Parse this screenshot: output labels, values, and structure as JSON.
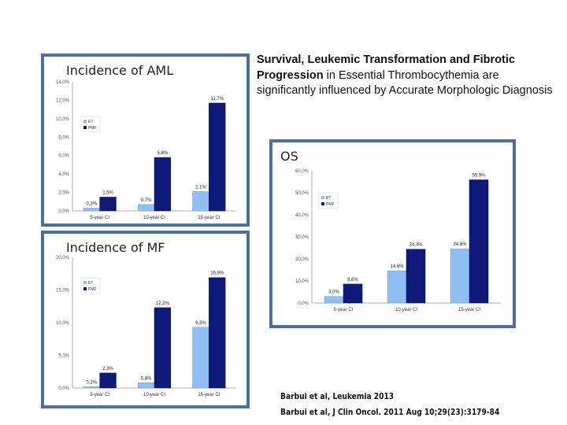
{
  "headline": {
    "bold": "Survival, Leukemic Transformation and Fibrotic Progression",
    "rest": " in Essential Thrombocythemia   are significantly influenced by Accurate Morphologic Diagnosis"
  },
  "citations": [
    "Barbui et al, Leukemia 2013",
    "Barbui et al, J Clin Oncol. 2011 Aug 10;29(23):3179-84"
  ],
  "colors": {
    "et": "#8fbff2",
    "pmf": "#0d1a7a",
    "frame": "#4a6fa5"
  },
  "chart_data": [
    {
      "id": "aml",
      "type": "bar",
      "title": "Incidence of AML",
      "categories": [
        "5-year CI",
        "10-year CI",
        "15-year CI"
      ],
      "ylim": [
        0,
        14
      ],
      "yticks": [
        0,
        2,
        4,
        6,
        8,
        10,
        12,
        14
      ],
      "ytick_labels": [
        "0,0%",
        "2,0%",
        "4,0%",
        "6,0%",
        "8,0%",
        "10,0%",
        "12,0%",
        "14,0%"
      ],
      "legend": [
        "ET",
        "PMF"
      ],
      "legend_position": "left",
      "series": [
        {
          "name": "ET",
          "values": [
            0.3,
            0.7,
            2.1
          ],
          "labels": [
            "0,3%",
            "0,7%",
            "2,1%"
          ]
        },
        {
          "name": "PMF",
          "values": [
            1.5,
            5.8,
            11.7
          ],
          "labels": [
            "1,5%",
            "5,8%",
            "11,7%"
          ]
        }
      ]
    },
    {
      "id": "mf",
      "type": "bar",
      "title": "Incidence of MF",
      "categories": [
        "5-year CI",
        "10-year CI",
        "15-year CI"
      ],
      "ylim": [
        0,
        20
      ],
      "yticks": [
        0,
        5,
        10,
        15,
        20
      ],
      "ytick_labels": [
        "0,0%",
        "5,0%",
        "10,0%",
        "15,0%",
        "20,0%"
      ],
      "legend": [
        "ET",
        "PMF"
      ],
      "legend_position": "left",
      "series": [
        {
          "name": "ET",
          "values": [
            0.2,
            0.8,
            9.3
          ],
          "labels": [
            "0,2%",
            "0,8%",
            "9,3%"
          ]
        },
        {
          "name": "PMF",
          "values": [
            2.3,
            12.3,
            16.9
          ],
          "labels": [
            "2,3%",
            "12,3%",
            "16,9%"
          ]
        }
      ]
    },
    {
      "id": "os",
      "type": "bar",
      "title": "OS",
      "categories": [
        "5-year CI",
        "10-year CI",
        "15-year CI"
      ],
      "ylim": [
        0,
        60
      ],
      "yticks": [
        0,
        10,
        20,
        30,
        40,
        50,
        60
      ],
      "ytick_labels": [
        "0,0%",
        "10,0%",
        "20,0%",
        "30,0%",
        "40,0%",
        "50,0%",
        "60,0%"
      ],
      "legend": [
        "ET",
        "PMF"
      ],
      "legend_position": "left",
      "series": [
        {
          "name": "ET",
          "values": [
            3.0,
            14.6,
            24.6
          ],
          "labels": [
            "3,0%",
            "14,6%",
            "24,6%"
          ]
        },
        {
          "name": "PMF",
          "values": [
            8.6,
            24.4,
            55.9
          ],
          "labels": [
            "8,6%",
            "24,4%",
            "55,9%"
          ]
        }
      ]
    }
  ]
}
